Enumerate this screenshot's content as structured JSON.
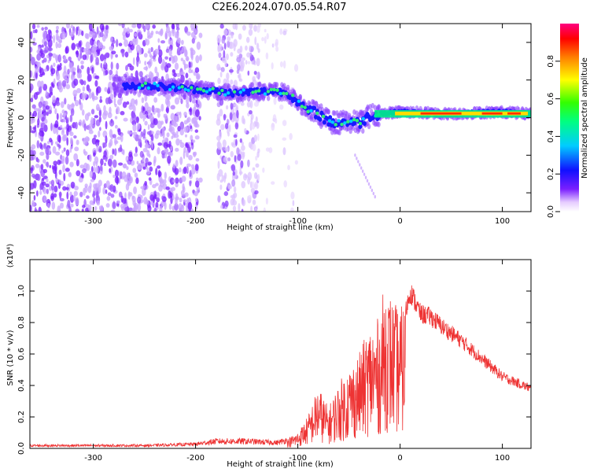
{
  "title": "C2E6.2024.070.05.54.R07",
  "colors": {
    "purple": "#7a1fff",
    "red": "#ee3333",
    "axis": "#000000"
  },
  "chart_data": [
    {
      "type": "heatmap",
      "xlabel": "Height of straight line (km)",
      "ylabel": "Frequency (Hz)",
      "xlim": [
        -362,
        128
      ],
      "ylim": [
        -50,
        50
      ],
      "xticks": [
        -300,
        -200,
        -100,
        0,
        100
      ],
      "yticks": [
        -40,
        -20,
        0,
        20,
        40
      ],
      "colorbar": {
        "label": "Normalized spectral amplitude",
        "range": [
          0,
          1
        ],
        "ticks": [
          "0.0",
          "0.2",
          "0.4",
          "0.6",
          "0.8"
        ],
        "colormap": [
          "#ffffff",
          "#e6ccff",
          "#7a1fff",
          "#1010ff",
          "#00ccff",
          "#00ff80",
          "#33ff00",
          "#ffff00",
          "#ff8000",
          "#ff0000",
          "#ff0080"
        ]
      },
      "ridge": {
        "x": [
          -280,
          -250,
          -220,
          -200,
          -180,
          -160,
          -140,
          -120,
          -110,
          -100,
          -90,
          -80,
          -70,
          -60,
          -50,
          -40,
          -30,
          -20,
          0,
          50,
          100,
          128
        ],
        "y": [
          17,
          17,
          16,
          15,
          14,
          13,
          14,
          14,
          13,
          8,
          4,
          2,
          -2,
          -3,
          -2,
          -3,
          1,
          2,
          3,
          2,
          3,
          2
        ]
      }
    },
    {
      "type": "line",
      "xlabel": "Height of straight line (km)",
      "ylabel": "SNR (10 * v/v)",
      "multiplier": "(x10⁴)",
      "xlim": [
        -362,
        128
      ],
      "ylim": [
        0,
        1.2
      ],
      "xticks": [
        -300,
        -200,
        -100,
        0,
        100
      ],
      "yticks": [
        "0.0",
        "0.2",
        "0.4",
        "0.6",
        "0.8",
        "1.0"
      ],
      "series": [
        {
          "color": "#ee3333",
          "envelope_x": [
            -362,
            -250,
            -200,
            -180,
            -150,
            -120,
            -110,
            -100,
            -90,
            -80,
            -70,
            -60,
            -50,
            -40,
            -30,
            -20,
            -15,
            -10,
            -5,
            0,
            5,
            10,
            20,
            30,
            40,
            60,
            80,
            100,
            128
          ],
          "envelope_y": [
            0.02,
            0.02,
            0.03,
            0.05,
            0.05,
            0.04,
            0.06,
            0.1,
            0.2,
            0.38,
            0.25,
            0.4,
            0.5,
            0.58,
            0.75,
            0.8,
            1.02,
            0.95,
            0.88,
            0.85,
            0.9,
            1.05,
            0.9,
            0.88,
            0.82,
            0.72,
            0.6,
            0.48,
            0.4
          ]
        }
      ]
    }
  ]
}
